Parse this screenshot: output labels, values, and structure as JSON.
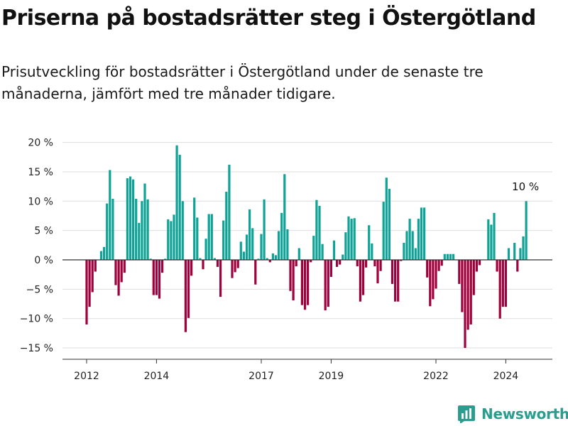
{
  "title": "Priserna på bostadsrätter steg i Östergötland",
  "subtitle": "Prisutveckling för bostadsrätter i Östergötland under de senaste tre månaderna, jämfört med tre månader tidigare.",
  "brand": {
    "name": "Newsworthy",
    "icon": "newsworthy-logo-icon",
    "color": "#2a9d8f"
  },
  "colors": {
    "positive": "#0fa296",
    "negative": "#a0003c",
    "grid": "#dddddd",
    "axis": "#333333"
  },
  "chart_data": {
    "type": "bar",
    "title": "Priserna på bostadsrätter steg i Östergötland",
    "xlabel": "",
    "ylabel": "",
    "ylim": [
      -17,
      21
    ],
    "y_ticks": [
      20,
      15,
      10,
      5,
      0,
      -5,
      -10,
      -15
    ],
    "y_tick_labels": [
      "20 %",
      "15 %",
      "10 %",
      "5 %",
      "0 %",
      "−5 %",
      "−10 %",
      "−15 %"
    ],
    "x_ticks": [
      {
        "label": "2012",
        "index": 0
      },
      {
        "label": "2014",
        "index": 24
      },
      {
        "label": "2017",
        "index": 60
      },
      {
        "label": "2019",
        "index": 84
      },
      {
        "label": "2022",
        "index": 120
      },
      {
        "label": "2024",
        "index": 144
      }
    ],
    "annotation": {
      "label": "10 %",
      "index": 151
    },
    "values": [
      -11,
      -8,
      -5.5,
      -2,
      0,
      1.5,
      2.2,
      9.6,
      15.3,
      10.4,
      -4.3,
      -6.1,
      -3.8,
      -2.2,
      13.9,
      14.2,
      13.7,
      10.4,
      6.3,
      10,
      13,
      10.3,
      0.2,
      -6,
      -6,
      -6.6,
      -2.2,
      0.2,
      6.9,
      6.6,
      7.7,
      19.5,
      17.9,
      10,
      -12.3,
      -9.9,
      -2.7,
      10.6,
      7.2,
      0.3,
      -1.6,
      3.6,
      7.8,
      7.8,
      0.3,
      -1.2,
      -6.3,
      6.7,
      11.6,
      16.2,
      -3.1,
      -2.1,
      -1.4,
      3.1,
      1.4,
      4.3,
      8.6,
      5.4,
      -4.2,
      0.2,
      4.4,
      10.3,
      0.3,
      -0.4,
      1.1,
      0.8,
      4.9,
      8,
      14.6,
      5.2,
      -5.3,
      -6.9,
      -1.1,
      2,
      -7.7,
      -8.5,
      -7.7,
      -0.4,
      4.1,
      10.2,
      9.2,
      2.7,
      -8.6,
      -8,
      -2.9,
      3.3,
      -1.2,
      -0.8,
      0.9,
      4.7,
      7.4,
      7,
      7.1,
      -1.1,
      -7.1,
      -6,
      -1.3,
      5.9,
      2.8,
      -1.1,
      -4,
      -1.9,
      9.9,
      14,
      12.1,
      -4.1,
      -7.1,
      -7.1,
      -0.2,
      2.9,
      4.9,
      7,
      4.9,
      2,
      7,
      8.9,
      8.9,
      -3,
      -7.9,
      -6.7,
      -4.9,
      -1.9,
      -1,
      1,
      1,
      1,
      1,
      0,
      -4.1,
      -8.9,
      -15,
      -11.9,
      -11,
      -6,
      -2,
      -0.9,
      0,
      0,
      6.9,
      6,
      8,
      -2,
      -10,
      -8,
      -8,
      2,
      0,
      2.9,
      -2,
      2,
      4,
      10
    ]
  }
}
